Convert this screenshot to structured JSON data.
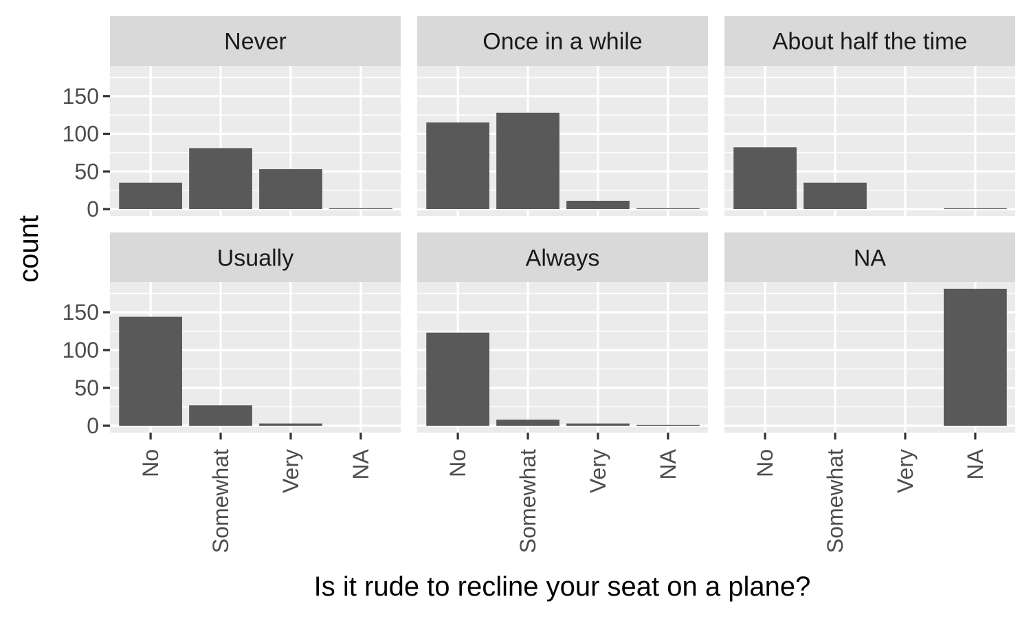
{
  "chart_data": {
    "type": "bar",
    "facet_layout": "3 columns x 2 rows",
    "categories": [
      "No",
      "Somewhat",
      "Very",
      "NA"
    ],
    "xlabel": "Is it rude to recline your seat on a plane?",
    "ylabel": "count",
    "ylim": [
      0,
      190
    ],
    "yticks": [
      "0",
      "50",
      "100",
      "150"
    ],
    "bar_color": "#595959",
    "panel_color": "#EBEBEB",
    "strip_color": "#D9D9D9",
    "grid": true,
    "facets": [
      {
        "label": "Never",
        "values": [
          35,
          81,
          53,
          1
        ]
      },
      {
        "label": "Once in a while",
        "values": [
          115,
          128,
          11,
          1
        ]
      },
      {
        "label": "About half the time",
        "values": [
          82,
          35,
          0,
          1
        ]
      },
      {
        "label": "Usually",
        "values": [
          144,
          27,
          3,
          0
        ]
      },
      {
        "label": "Always",
        "values": [
          123,
          8,
          3,
          1
        ]
      },
      {
        "label": "NA",
        "values": [
          0,
          0,
          0,
          181
        ]
      }
    ]
  }
}
